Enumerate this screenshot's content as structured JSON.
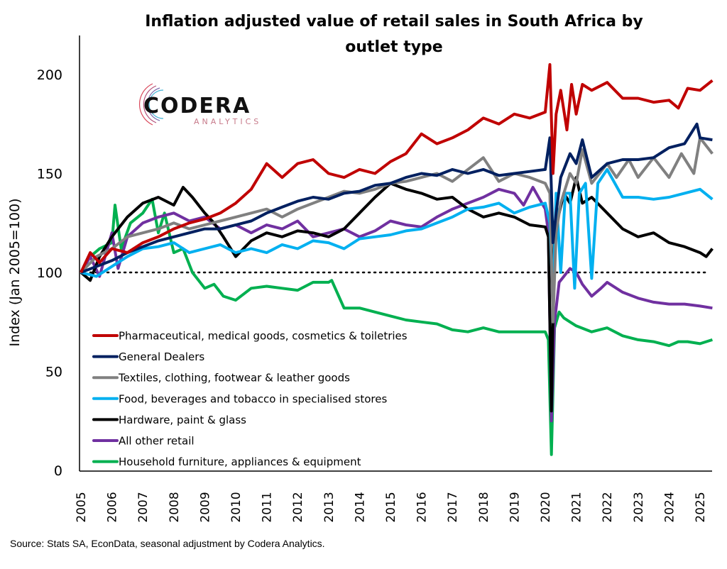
{
  "chart_data": {
    "type": "line",
    "title_lines": [
      "Inflation adjusted value of retail sales in South Africa by",
      "outlet type"
    ],
    "xlabel": "",
    "ylabel": "Index (Jan 2005=100)",
    "ylim": [
      0,
      210
    ],
    "xlim": [
      2005,
      2025.4
    ],
    "yticks": [
      0,
      50,
      100,
      150,
      200
    ],
    "xticks": [
      "2005",
      "2006",
      "2007",
      "2008",
      "2009",
      "2010",
      "2011",
      "2012",
      "2013",
      "2014",
      "2015",
      "2016",
      "2017",
      "2018",
      "2019",
      "2020",
      "2021",
      "2022",
      "2023",
      "2024",
      "2025"
    ],
    "reference_line": {
      "value": 100,
      "style": "dotted"
    },
    "grid": false,
    "legend_position": "bottom-left",
    "source": "Source: Stats SA, EconData, seasonal adjustment by Codera Analytics.",
    "logo": {
      "name": "CODERA",
      "sub": "ANALYTICS"
    },
    "series": [
      {
        "name": "Pharmaceutical, medical goods, cosmetics & toiletries",
        "color": "#c00000",
        "x": [
          2005,
          2005.3,
          2005.6,
          2006,
          2006.5,
          2007,
          2007.5,
          2008,
          2008.5,
          2009,
          2009.5,
          2010,
          2010.5,
          2011,
          2011.5,
          2012,
          2012.5,
          2013,
          2013.5,
          2014,
          2014.5,
          2015,
          2015.5,
          2016,
          2016.5,
          2017,
          2017.5,
          2018,
          2018.5,
          2019,
          2019.5,
          2020,
          2020.15,
          2020.25,
          2020.35,
          2020.5,
          2020.7,
          2020.85,
          2021,
          2021.2,
          2021.5,
          2022,
          2022.5,
          2023,
          2023.5,
          2024,
          2024.3,
          2024.6,
          2025,
          2025.4
        ],
        "y": [
          100,
          110,
          105,
          112,
          110,
          115,
          118,
          122,
          125,
          127,
          130,
          135,
          142,
          155,
          148,
          155,
          157,
          150,
          148,
          152,
          150,
          156,
          160,
          170,
          165,
          168,
          172,
          178,
          175,
          180,
          178,
          181,
          205,
          150,
          180,
          192,
          172,
          195,
          180,
          195,
          192,
          196,
          188,
          188,
          186,
          187,
          183,
          193,
          192,
          197
        ]
      },
      {
        "name": "General Dealers",
        "color": "#002060",
        "x": [
          2005,
          2005.5,
          2006,
          2006.5,
          2007,
          2007.5,
          2008,
          2008.5,
          2009,
          2009.5,
          2010,
          2010.5,
          2011,
          2011.5,
          2012,
          2012.5,
          2013,
          2013.5,
          2014,
          2014.5,
          2015,
          2015.5,
          2016,
          2016.5,
          2017,
          2017.5,
          2018,
          2018.5,
          2019,
          2019.5,
          2020,
          2020.15,
          2020.25,
          2020.35,
          2020.5,
          2020.8,
          2021,
          2021.2,
          2021.5,
          2022,
          2022.5,
          2023,
          2023.5,
          2024,
          2024.5,
          2024.9,
          2025,
          2025.4
        ],
        "y": [
          100,
          103,
          106,
          110,
          113,
          116,
          118,
          120,
          122,
          122,
          124,
          126,
          130,
          133,
          136,
          138,
          137,
          140,
          141,
          144,
          145,
          148,
          150,
          149,
          152,
          150,
          152,
          149,
          150,
          151,
          152,
          168,
          115,
          130,
          148,
          160,
          155,
          167,
          148,
          155,
          157,
          157,
          158,
          163,
          165,
          175,
          168,
          167
        ]
      },
      {
        "name": "Textiles, clothing, footwear & leather goods",
        "color": "#808080",
        "x": [
          2005,
          2005.5,
          2006,
          2006.5,
          2007,
          2007.5,
          2008,
          2008.5,
          2009,
          2009.5,
          2010,
          2010.5,
          2011,
          2011.5,
          2012,
          2012.5,
          2013,
          2013.5,
          2014,
          2014.5,
          2015,
          2015.5,
          2016,
          2016.5,
          2017,
          2017.5,
          2018,
          2018.5,
          2019,
          2019.5,
          2020,
          2020.15,
          2020.25,
          2020.35,
          2020.5,
          2020.8,
          2021,
          2021.2,
          2021.5,
          2022,
          2022.3,
          2022.7,
          2023,
          2023.5,
          2024,
          2024.4,
          2024.8,
          2025,
          2025.4
        ],
        "y": [
          100,
          108,
          112,
          118,
          120,
          122,
          125,
          122,
          124,
          126,
          128,
          130,
          132,
          128,
          132,
          135,
          138,
          141,
          140,
          142,
          145,
          146,
          148,
          150,
          146,
          152,
          158,
          146,
          150,
          148,
          145,
          140,
          75,
          120,
          135,
          150,
          145,
          162,
          145,
          155,
          148,
          157,
          148,
          158,
          148,
          160,
          150,
          168,
          160
        ]
      },
      {
        "name": "Food, beverages and tobacco in specialised stores",
        "color": "#00b0f0",
        "x": [
          2005,
          2005.5,
          2006,
          2006.5,
          2007,
          2007.5,
          2008,
          2008.5,
          2009,
          2009.5,
          2010,
          2010.5,
          2011,
          2011.5,
          2012,
          2012.5,
          2013,
          2013.5,
          2014,
          2014.5,
          2015,
          2015.5,
          2016,
          2016.5,
          2017,
          2017.5,
          2018,
          2018.5,
          2019,
          2019.5,
          2020,
          2020.15,
          2020.25,
          2020.35,
          2020.5,
          2020.65,
          2020.8,
          2020.95,
          2021.1,
          2021.3,
          2021.5,
          2021.7,
          2022,
          2022.5,
          2023,
          2023.5,
          2024,
          2024.5,
          2025,
          2025.4
        ],
        "y": [
          100,
          98,
          103,
          108,
          112,
          113,
          115,
          110,
          112,
          114,
          110,
          112,
          110,
          114,
          112,
          116,
          115,
          112,
          117,
          118,
          119,
          121,
          122,
          125,
          128,
          132,
          133,
          135,
          130,
          133,
          135,
          125,
          85,
          140,
          100,
          140,
          140,
          92,
          140,
          145,
          97,
          145,
          152,
          138,
          138,
          137,
          138,
          140,
          142,
          137
        ]
      },
      {
        "name": "Hardware, paint &  glass",
        "color": "#000000",
        "x": [
          2005,
          2005.3,
          2005.6,
          2006,
          2006.5,
          2007,
          2007.5,
          2008,
          2008.3,
          2008.6,
          2009,
          2009.3,
          2009.6,
          2010,
          2010.5,
          2011,
          2011.5,
          2012,
          2012.5,
          2013,
          2013.5,
          2014,
          2014.5,
          2015,
          2015.5,
          2016,
          2016.5,
          2017,
          2017.5,
          2018,
          2018.5,
          2019,
          2019.5,
          2020,
          2020.1,
          2020.2,
          2020.3,
          2020.45,
          2020.6,
          2020.8,
          2021,
          2021.2,
          2021.5,
          2022,
          2022.5,
          2023,
          2023.5,
          2024,
          2024.5,
          2025,
          2025.2,
          2025.4
        ],
        "y": [
          100,
          96,
          108,
          118,
          128,
          135,
          138,
          134,
          143,
          138,
          130,
          125,
          118,
          108,
          116,
          120,
          118,
          121,
          120,
          118,
          122,
          130,
          138,
          145,
          142,
          140,
          137,
          138,
          132,
          128,
          130,
          128,
          124,
          123,
          118,
          30,
          125,
          130,
          140,
          135,
          148,
          135,
          138,
          130,
          122,
          118,
          120,
          115,
          113,
          110,
          108,
          112
        ]
      },
      {
        "name": "All other retail",
        "color": "#7030a0",
        "x": [
          2005,
          2005.3,
          2005.6,
          2006,
          2006.2,
          2006.5,
          2007,
          2007.5,
          2008,
          2008.5,
          2009,
          2009.5,
          2010,
          2010.5,
          2011,
          2011.5,
          2012,
          2012.5,
          2013,
          2013.5,
          2014,
          2014.5,
          2015,
          2015.5,
          2016,
          2016.5,
          2017,
          2017.5,
          2018,
          2018.5,
          2019,
          2019.3,
          2019.6,
          2020,
          2020.1,
          2020.2,
          2020.3,
          2020.45,
          2020.6,
          2020.8,
          2021,
          2021.2,
          2021.5,
          2021.8,
          2022,
          2022.5,
          2023,
          2023.5,
          2024,
          2024.5,
          2025,
          2025.4
        ],
        "y": [
          100,
          108,
          98,
          120,
          102,
          118,
          125,
          128,
          130,
          126,
          128,
          122,
          124,
          120,
          124,
          122,
          126,
          118,
          120,
          122,
          118,
          121,
          126,
          124,
          123,
          128,
          132,
          135,
          138,
          142,
          140,
          134,
          143,
          132,
          120,
          25,
          75,
          95,
          98,
          102,
          100,
          94,
          88,
          92,
          95,
          90,
          87,
          85,
          84,
          84,
          83,
          82
        ]
      },
      {
        "name": "Household furniture, appliances & equipment",
        "color": "#00b050",
        "x": [
          2005,
          2005.3,
          2005.6,
          2006,
          2006.1,
          2006.3,
          2006.6,
          2007,
          2007.3,
          2007.5,
          2007.7,
          2008,
          2008.3,
          2008.6,
          2009,
          2009.3,
          2009.6,
          2010,
          2010.5,
          2011,
          2011.5,
          2012,
          2012.5,
          2013,
          2013.1,
          2013.5,
          2014,
          2014.5,
          2015,
          2015.5,
          2016,
          2016.5,
          2017,
          2017.5,
          2018,
          2018.5,
          2019,
          2019.5,
          2020,
          2020.1,
          2020.2,
          2020.3,
          2020.45,
          2020.6,
          2020.8,
          2021,
          2021.5,
          2022,
          2022.5,
          2023,
          2023.5,
          2024,
          2024.3,
          2024.6,
          2025,
          2025.4
        ],
        "y": [
          100,
          108,
          112,
          115,
          134,
          112,
          125,
          130,
          137,
          120,
          130,
          110,
          112,
          100,
          92,
          94,
          88,
          86,
          92,
          93,
          92,
          91,
          95,
          95,
          96,
          82,
          82,
          80,
          78,
          76,
          75,
          74,
          71,
          70,
          72,
          70,
          70,
          70,
          70,
          66,
          8,
          72,
          80,
          77,
          75,
          73,
          70,
          72,
          68,
          66,
          65,
          63,
          65,
          65,
          64,
          66
        ]
      }
    ]
  }
}
